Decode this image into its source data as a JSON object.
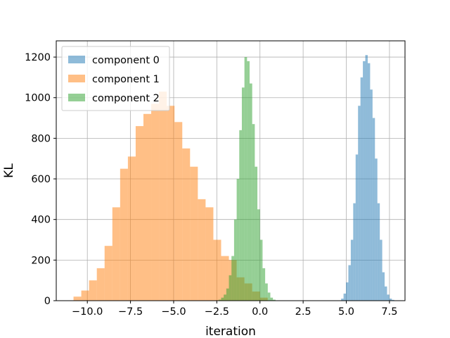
{
  "chart_data": {
    "type": "histogram",
    "title": "",
    "xlabel": "iteration",
    "ylabel": "KL",
    "xlim": [
      -11.8,
      8.4
    ],
    "ylim": [
      0,
      1280
    ],
    "grid": true,
    "legend_position": "top-left",
    "xticks": [
      -10.0,
      -7.5,
      -5.0,
      -2.5,
      0.0,
      2.5,
      5.0,
      7.5
    ],
    "xtick_labels": [
      "−10.0",
      "−7.5",
      "−5.0",
      "−2.5",
      "0.0",
      "2.5",
      "5.0",
      "7.5"
    ],
    "yticks": [
      0,
      200,
      400,
      600,
      800,
      1000,
      1200
    ],
    "ytick_labels": [
      "0",
      "200",
      "400",
      "600",
      "800",
      "1000",
      "1200"
    ],
    "series": [
      {
        "name": "component 0",
        "color": "#1f77b4",
        "alpha": 0.5,
        "bins_start": 4.7,
        "bin_width": 0.14,
        "values": [
          10,
          35,
          90,
          175,
          300,
          480,
          720,
          960,
          1100,
          1180,
          1210,
          1170,
          1040,
          900,
          700,
          480,
          300,
          140,
          70,
          30,
          10,
          4
        ]
      },
      {
        "name": "component 1",
        "color": "#ff7f0e",
        "alpha": 0.5,
        "bins_start": -10.8,
        "bin_width": 0.45,
        "values": [
          20,
          50,
          100,
          160,
          270,
          460,
          650,
          710,
          860,
          920,
          970,
          1030,
          960,
          880,
          750,
          660,
          500,
          460,
          300,
          220,
          200,
          115,
          85,
          45,
          15
        ]
      },
      {
        "name": "component 2",
        "color": "#2ca02c",
        "alpha": 0.5,
        "bins_start": -2.4,
        "bin_width": 0.15,
        "values": [
          5,
          15,
          30,
          60,
          125,
          220,
          400,
          600,
          840,
          1050,
          1200,
          1180,
          1070,
          870,
          660,
          450,
          300,
          160,
          85,
          40,
          15,
          5
        ]
      }
    ]
  }
}
